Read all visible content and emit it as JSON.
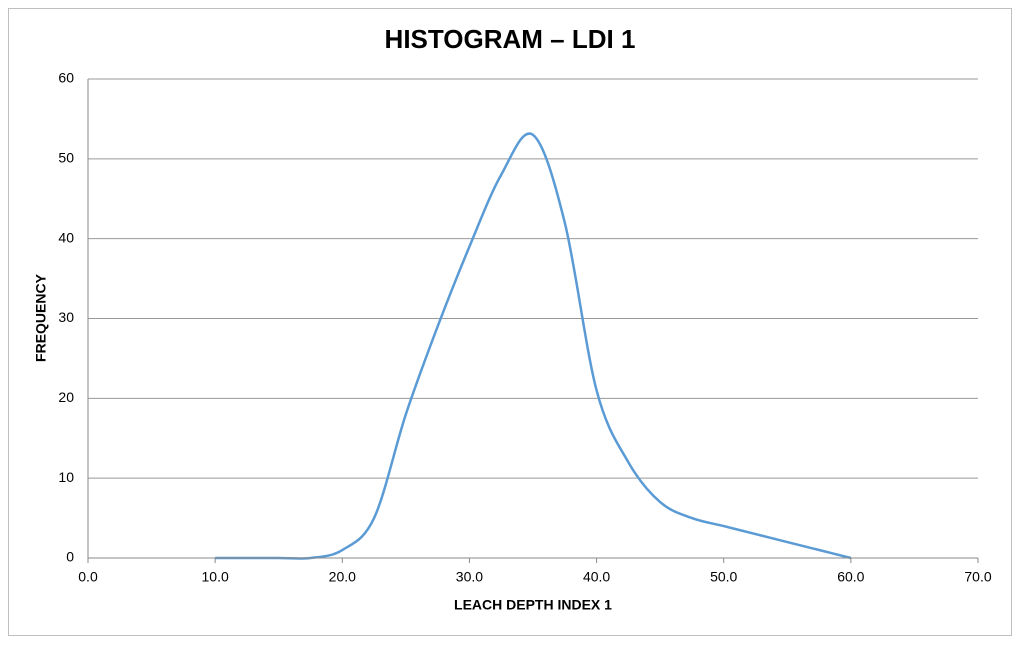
{
  "chart_data": {
    "type": "line",
    "title": "HISTOGRAM – LDI 1",
    "xlabel": "LEACH DEPTH INDEX 1",
    "ylabel": "FREQUENCY",
    "x": [
      10,
      12.5,
      15,
      17.5,
      20,
      22.5,
      25,
      27.5,
      30,
      32.5,
      35,
      37.5,
      40,
      42.5,
      45,
      47.5,
      50,
      52.5,
      55,
      57.5,
      60
    ],
    "values": [
      0,
      0,
      0,
      0,
      1,
      5,
      18,
      29,
      39,
      48,
      53,
      42,
      21,
      12,
      7,
      5,
      4,
      3,
      2,
      1,
      0
    ],
    "color": "#5b9bd5",
    "xlim": [
      0,
      70
    ],
    "xticks": [
      {
        "value": 0,
        "label": "0.0"
      },
      {
        "value": 10,
        "label": "10.0"
      },
      {
        "value": 20,
        "label": "20.0"
      },
      {
        "value": 30,
        "label": "30.0"
      },
      {
        "value": 40,
        "label": "40.0"
      },
      {
        "value": 50,
        "label": "50.0"
      },
      {
        "value": 60,
        "label": "60.0"
      },
      {
        "value": 70,
        "label": "70.0"
      }
    ],
    "ylim": [
      0,
      60
    ],
    "yticks": [
      0,
      10,
      20,
      30,
      40,
      50,
      60
    ],
    "grid": true
  }
}
